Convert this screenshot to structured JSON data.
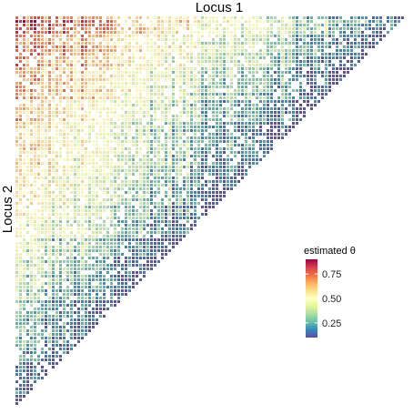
{
  "chart_data": {
    "type": "heatmap",
    "shape": "lower-triangular",
    "xlabel": "Locus 1",
    "ylabel": "Locus 2",
    "legend": {
      "title": "estimated θ",
      "ticks": [
        0.75,
        0.5,
        0.25
      ],
      "tick_labels": [
        "0.75",
        "0.50",
        "0.25"
      ],
      "range": [
        0.1,
        0.9
      ],
      "placement": "right-center",
      "palette": [
        "#5E4FA2",
        "#3288BD",
        "#66C2A5",
        "#ABDDA4",
        "#E6F598",
        "#FFFFBF",
        "#FEE08B",
        "#FDAE61",
        "#F46D43",
        "#D53E4F",
        "#9E0142"
      ]
    },
    "grid": false,
    "pattern": {
      "max_near_top_left": 0.8,
      "min_near_diagonal": 0.1
    }
  }
}
